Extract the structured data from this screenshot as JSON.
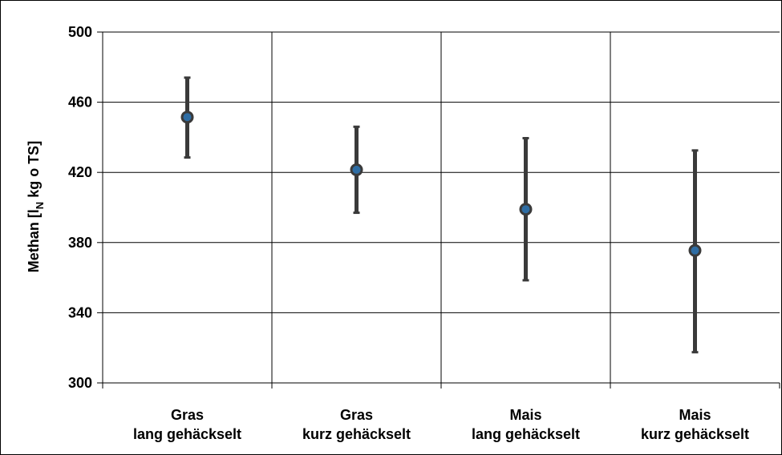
{
  "chart_data": {
    "type": "scatter",
    "title": "",
    "ylabel_main": "Methan [l",
    "ylabel_sub": "N",
    "ylabel_rest": " kg o TS]",
    "xlabel": "",
    "ylim": [
      300,
      500
    ],
    "yticks": [
      300,
      340,
      380,
      420,
      460,
      500
    ],
    "ytick_labels": [
      "300",
      "340",
      "380",
      "420",
      "460",
      "500"
    ],
    "grid": true,
    "categories": [
      [
        "Gras",
        "lang gehäckselt"
      ],
      [
        "Gras",
        "kurz gehäckselt"
      ],
      [
        "Mais",
        "lang gehäckselt"
      ],
      [
        "Mais",
        "kurz gehäckselt"
      ]
    ],
    "series": [
      {
        "values": [
          451.5,
          421.5,
          399,
          375.5
        ],
        "error_low": [
          428.5,
          397,
          358.5,
          317.5
        ],
        "error_high": [
          474,
          446,
          439.5,
          432.5
        ]
      }
    ],
    "colors": {
      "marker": "#2e6da4",
      "marker_edge": "#3a3a3a",
      "errorbar": "#3a3a3a",
      "grid": "#000000"
    }
  }
}
